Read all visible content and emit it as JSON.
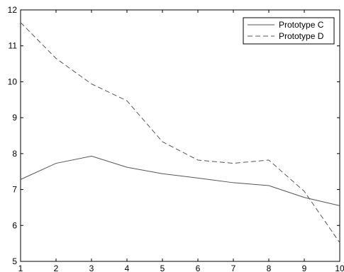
{
  "chart_data": {
    "type": "line",
    "title": "",
    "xlabel": "",
    "ylabel": "",
    "x": [
      1,
      2,
      3,
      4,
      5,
      6,
      7,
      8,
      9,
      10
    ],
    "xlim": [
      1,
      10
    ],
    "ylim": [
      5,
      12
    ],
    "xticks": [
      "1",
      "2",
      "3",
      "4",
      "5",
      "6",
      "7",
      "8",
      "9",
      "10"
    ],
    "yticks": [
      "5",
      "6",
      "7",
      "8",
      "9",
      "10",
      "11",
      "12"
    ],
    "grid": false,
    "legend_position": "top-right",
    "series": [
      {
        "name": "Prototype C",
        "style": "solid",
        "color": "#555555",
        "values": [
          7.28,
          7.73,
          7.93,
          7.62,
          7.44,
          7.32,
          7.19,
          7.11,
          6.78,
          6.55
        ]
      },
      {
        "name": "Prototype D",
        "style": "dashed",
        "color": "#555555",
        "values": [
          11.65,
          10.65,
          9.94,
          9.47,
          8.33,
          7.82,
          7.73,
          7.82,
          6.95,
          5.52
        ]
      }
    ]
  }
}
